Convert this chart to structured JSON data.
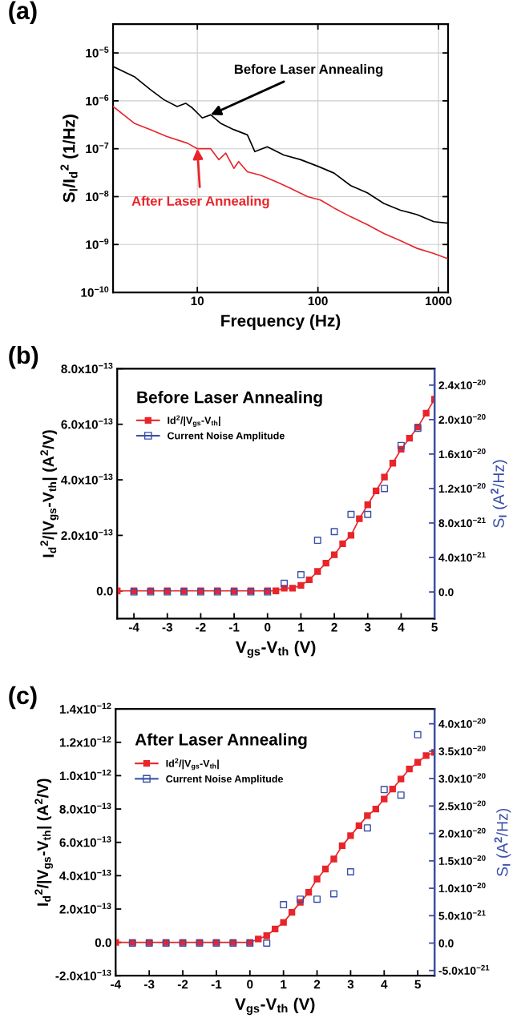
{
  "chart_data": [
    {
      "type": "line",
      "title": "(a)",
      "xlabel": "Frequency (Hz)",
      "ylabel": "S$_{I}$/I$_{d}$$^{2}$ (1/Hz)",
      "log": "xy",
      "grid": true,
      "xlim": [
        2,
        1200
      ],
      "ylim": [
        1e-10,
        4e-05
      ],
      "xticks": [
        10,
        100,
        1000
      ],
      "yticks": [
        {
          "value": 1e-10,
          "label": "10$^{−10}$"
        },
        {
          "value": 1e-09,
          "label": "10$^{−9}$"
        },
        {
          "value": 1e-08,
          "label": "10$^{−8}$"
        },
        {
          "value": 1e-07,
          "label": "10$^{−7}$"
        },
        {
          "value": 1e-06,
          "label": "10$^{−6}$"
        },
        {
          "value": 1e-05,
          "label": "10$^{−5}$"
        }
      ],
      "series": [
        {
          "color": "#000000",
          "x": [
            2,
            3,
            4.1,
            5.3,
            6.8,
            8,
            9.1,
            11,
            12.9,
            15.6,
            20.1,
            26,
            30,
            38,
            52,
            72,
            100,
            136,
            187,
            257,
            352,
            484,
            665,
            914,
            1180
          ],
          "values": [
            5.2e-06,
            3.2e-06,
            1.7e-06,
            1.05e-06,
            7.6e-07,
            8.9e-07,
            7.1e-07,
            4.4e-07,
            5.1e-07,
            3.4e-07,
            2.5e-07,
            1.95e-07,
            8.7e-08,
            1.1e-07,
            7.4e-08,
            5.9e-08,
            4.3e-08,
            3.1e-08,
            1.7e-08,
            1.2e-08,
            7.2e-09,
            5.2e-09,
            4.2e-09,
            3e-09,
            2.8e-09
          ]
        },
        {
          "color": "#e8252a",
          "x": [
            2,
            3,
            4.1,
            5.6,
            8.3,
            10,
            12.9,
            15.1,
            17.2,
            20.1,
            22,
            26,
            33.5,
            46,
            59,
            82,
            105,
            136,
            187,
            257,
            352,
            484,
            665,
            914,
            1180
          ],
          "values": [
            7.6e-07,
            3.4e-07,
            2.5e-07,
            1.8e-07,
            1.3e-07,
            1e-07,
            1e-07,
            5.9e-08,
            8.1e-08,
            3.9e-08,
            5.4e-08,
            3.3e-08,
            2.8e-08,
            2e-08,
            1.5e-08,
            1e-08,
            8.5e-09,
            5.8e-09,
            3.8e-09,
            2.6e-09,
            1.7e-09,
            1.2e-09,
            8.3e-10,
            6.5e-10,
            5.1e-10
          ]
        }
      ],
      "annotations": [
        {
          "text": "Before Laser Annealing",
          "x": 12.9,
          "y": 5.1e-07
        },
        {
          "text": "After Laser Annealing",
          "x": 10,
          "y": 1e-07
        }
      ]
    },
    {
      "type": "line",
      "title": "(b)",
      "xlabel": "V$_{gs}$-V$_{th}$ (V)",
      "ylabel": "I$_{d}$$^{2}$/|V$_{gs}$-V$_{th}$| (A$^{2}$/V)",
      "y2label": "S$_{I}$ (A$^{2}$/Hz)",
      "legend": "top left",
      "xlim": [
        -4.5,
        5
      ],
      "ylim": [
        -1e-13,
        8e-13
      ],
      "y2lim": [
        -3.1e-21,
        2.59e-20
      ],
      "xticks": [
        -4,
        -3,
        -2,
        -1,
        0,
        1,
        2,
        3,
        4,
        5
      ],
      "yticks": [
        {
          "value": 0,
          "label": "0.0"
        },
        {
          "value": 2e-13,
          "label": "2.0x10$^{−13}$"
        },
        {
          "value": 4e-13,
          "label": "4.0x10$^{−13}$"
        },
        {
          "value": 6e-13,
          "label": "6.0x10$^{−13}$"
        },
        {
          "value": 8e-13,
          "label": "8.0x10$^{−13}$"
        }
      ],
      "y2ticks": [
        {
          "value": 0,
          "label": "0.0"
        },
        {
          "value": 4e-21,
          "label": "4.0x10$^{−21}$"
        },
        {
          "value": 8e-21,
          "label": "8.0x10$^{−21}$"
        },
        {
          "value": 1.2e-20,
          "label": "1.2x10$^{−20}$"
        },
        {
          "value": 1.6e-20,
          "label": "1.6x10$^{−20}$"
        },
        {
          "value": 2e-20,
          "label": "2.0x10$^{−20}$"
        },
        {
          "value": 2.4e-20,
          "label": "2.4x10$^{−20}$"
        }
      ],
      "series": [
        {
          "name": "Id$^{2}$/|V$_{gs}$-V$_{th}$|",
          "type": "line",
          "marker": "square",
          "color": "#e8252a",
          "x": [
            -4.5,
            -4,
            -3.5,
            -3,
            -2.5,
            -2,
            -1.5,
            -1,
            -0.5,
            0,
            0.25,
            0.5,
            0.75,
            1,
            1.25,
            1.5,
            1.75,
            2,
            2.25,
            2.5,
            2.75,
            3,
            3.25,
            3.5,
            3.75,
            4,
            4.25,
            4.5,
            4.75,
            5
          ],
          "values": [
            0,
            0,
            0,
            0,
            0,
            0,
            0,
            0,
            0,
            0,
            0,
            1e-14,
            1e-14,
            2e-14,
            4e-14,
            7e-14,
            1e-13,
            1.3e-13,
            1.7e-13,
            2e-13,
            2.6e-13,
            3.1e-13,
            3.6e-13,
            4.1e-13,
            4.6e-13,
            5.1e-13,
            5.5e-13,
            5.9e-13,
            6.4e-13,
            6.9e-13
          ]
        },
        {
          "name": "Current Noise Amplitude",
          "type": "scatter",
          "marker": "square",
          "axis": "y2",
          "color": "#3a4fa8",
          "x": [
            -4,
            -3.5,
            -3,
            -2.5,
            -2,
            -1.5,
            -1,
            -0.5,
            0,
            0.5,
            1,
            1.5,
            2,
            2.5,
            3,
            3.5,
            4,
            4.5
          ],
          "values": [
            0,
            0,
            0,
            0,
            0,
            0,
            0,
            0,
            0,
            1e-21,
            2e-21,
            6e-21,
            7e-21,
            9e-21,
            9e-21,
            1.2e-20,
            1.7e-20,
            1.9e-20
          ]
        }
      ],
      "annotations": [
        "Before Laser Annealing"
      ]
    },
    {
      "type": "line",
      "title": "(c)",
      "xlabel": "V$_{gs}$-V$_{th}$ (V)",
      "ylabel": "I$_{d}$$^{2}$/|V$_{gs}$-V$_{th}$| (A$^{2}$/V)",
      "y2label": "S$_{I}$ (A$^{2}$/Hz)",
      "legend": "top left",
      "xlim": [
        -4,
        5.5
      ],
      "ylim": [
        -2e-13,
        1.4e-12
      ],
      "y2lim": [
        -5.95e-21,
        4.27e-20
      ],
      "xticks": [
        -4,
        -3,
        -2,
        -1,
        0,
        1,
        2,
        3,
        4,
        5
      ],
      "yticks": [
        {
          "value": -2e-13,
          "label": "-2.0x10$^{−13}$"
        },
        {
          "value": 0,
          "label": "0.0"
        },
        {
          "value": 2e-13,
          "label": "2.0x10$^{−13}$"
        },
        {
          "value": 4e-13,
          "label": "4.0x10$^{−13}$"
        },
        {
          "value": 6e-13,
          "label": "6.0x10$^{−13}$"
        },
        {
          "value": 8e-13,
          "label": "8.0x10$^{−13}$"
        },
        {
          "value": 1e-12,
          "label": "1.0x10$^{−12}$"
        },
        {
          "value": 1.2e-12,
          "label": "1.2x10$^{−12}$"
        },
        {
          "value": 1.4e-12,
          "label": "1.4x10$^{−12}$"
        }
      ],
      "y2ticks": [
        {
          "value": -5e-21,
          "label": "-5.0x10$^{−21}$"
        },
        {
          "value": 0,
          "label": "0.0"
        },
        {
          "value": 5e-21,
          "label": "5.0x10$^{−21}$"
        },
        {
          "value": 1e-20,
          "label": "1.0x10$^{−20}$"
        },
        {
          "value": 1.5e-20,
          "label": "1.5x10$^{−20}$"
        },
        {
          "value": 2e-20,
          "label": "2.0x10$^{−20}$"
        },
        {
          "value": 2.5e-20,
          "label": "2.5x10$^{−20}$"
        },
        {
          "value": 3e-20,
          "label": "3.0x10$^{−20}$"
        },
        {
          "value": 3.5e-20,
          "label": "3.5x10$^{−20}$"
        },
        {
          "value": 4e-20,
          "label": "4.0x10$^{−20}$"
        }
      ],
      "series": [
        {
          "name": "Id$^{2}$/|V$_{gs}$-V$_{th}$|",
          "type": "line",
          "marker": "square",
          "color": "#e8252a",
          "x": [
            -4,
            -3.5,
            -3,
            -2.5,
            -2,
            -1.5,
            -1,
            -0.5,
            0,
            0.25,
            0.5,
            0.75,
            1,
            1.25,
            1.5,
            1.75,
            2,
            2.25,
            2.5,
            2.75,
            3,
            3.25,
            3.5,
            3.75,
            4,
            4.25,
            4.5,
            4.75,
            5,
            5.25,
            5.5
          ],
          "values": [
            0,
            0,
            0,
            0,
            0,
            0,
            0,
            0,
            0,
            2e-14,
            4e-14,
            8e-14,
            1.2e-13,
            1.8e-13,
            2.4e-13,
            3e-13,
            3.8e-13,
            4.4e-13,
            5e-13,
            5.8e-13,
            6.4e-13,
            7e-13,
            7.6e-13,
            8e-13,
            8.6e-13,
            9.2e-13,
            9.8e-13,
            1.04e-12,
            1.08e-12,
            1.12e-12,
            1.14e-12
          ]
        },
        {
          "name": "Current Noise Amplitude",
          "type": "scatter",
          "marker": "square",
          "axis": "y2",
          "color": "#3a4fa8",
          "x": [
            -3.5,
            -3,
            -2.5,
            -2,
            -1.5,
            -1,
            -0.5,
            0,
            0.5,
            1,
            1.5,
            2,
            2.5,
            3,
            3.5,
            4,
            4.5,
            5
          ],
          "values": [
            0,
            0,
            0,
            0,
            0,
            0,
            0,
            0,
            0,
            7e-21,
            8e-21,
            8e-21,
            9e-21,
            1.3e-20,
            2.1e-20,
            2.8e-20,
            2.7e-20,
            3.8e-20
          ]
        }
      ],
      "annotations": [
        "After Laser Annealing"
      ]
    }
  ]
}
